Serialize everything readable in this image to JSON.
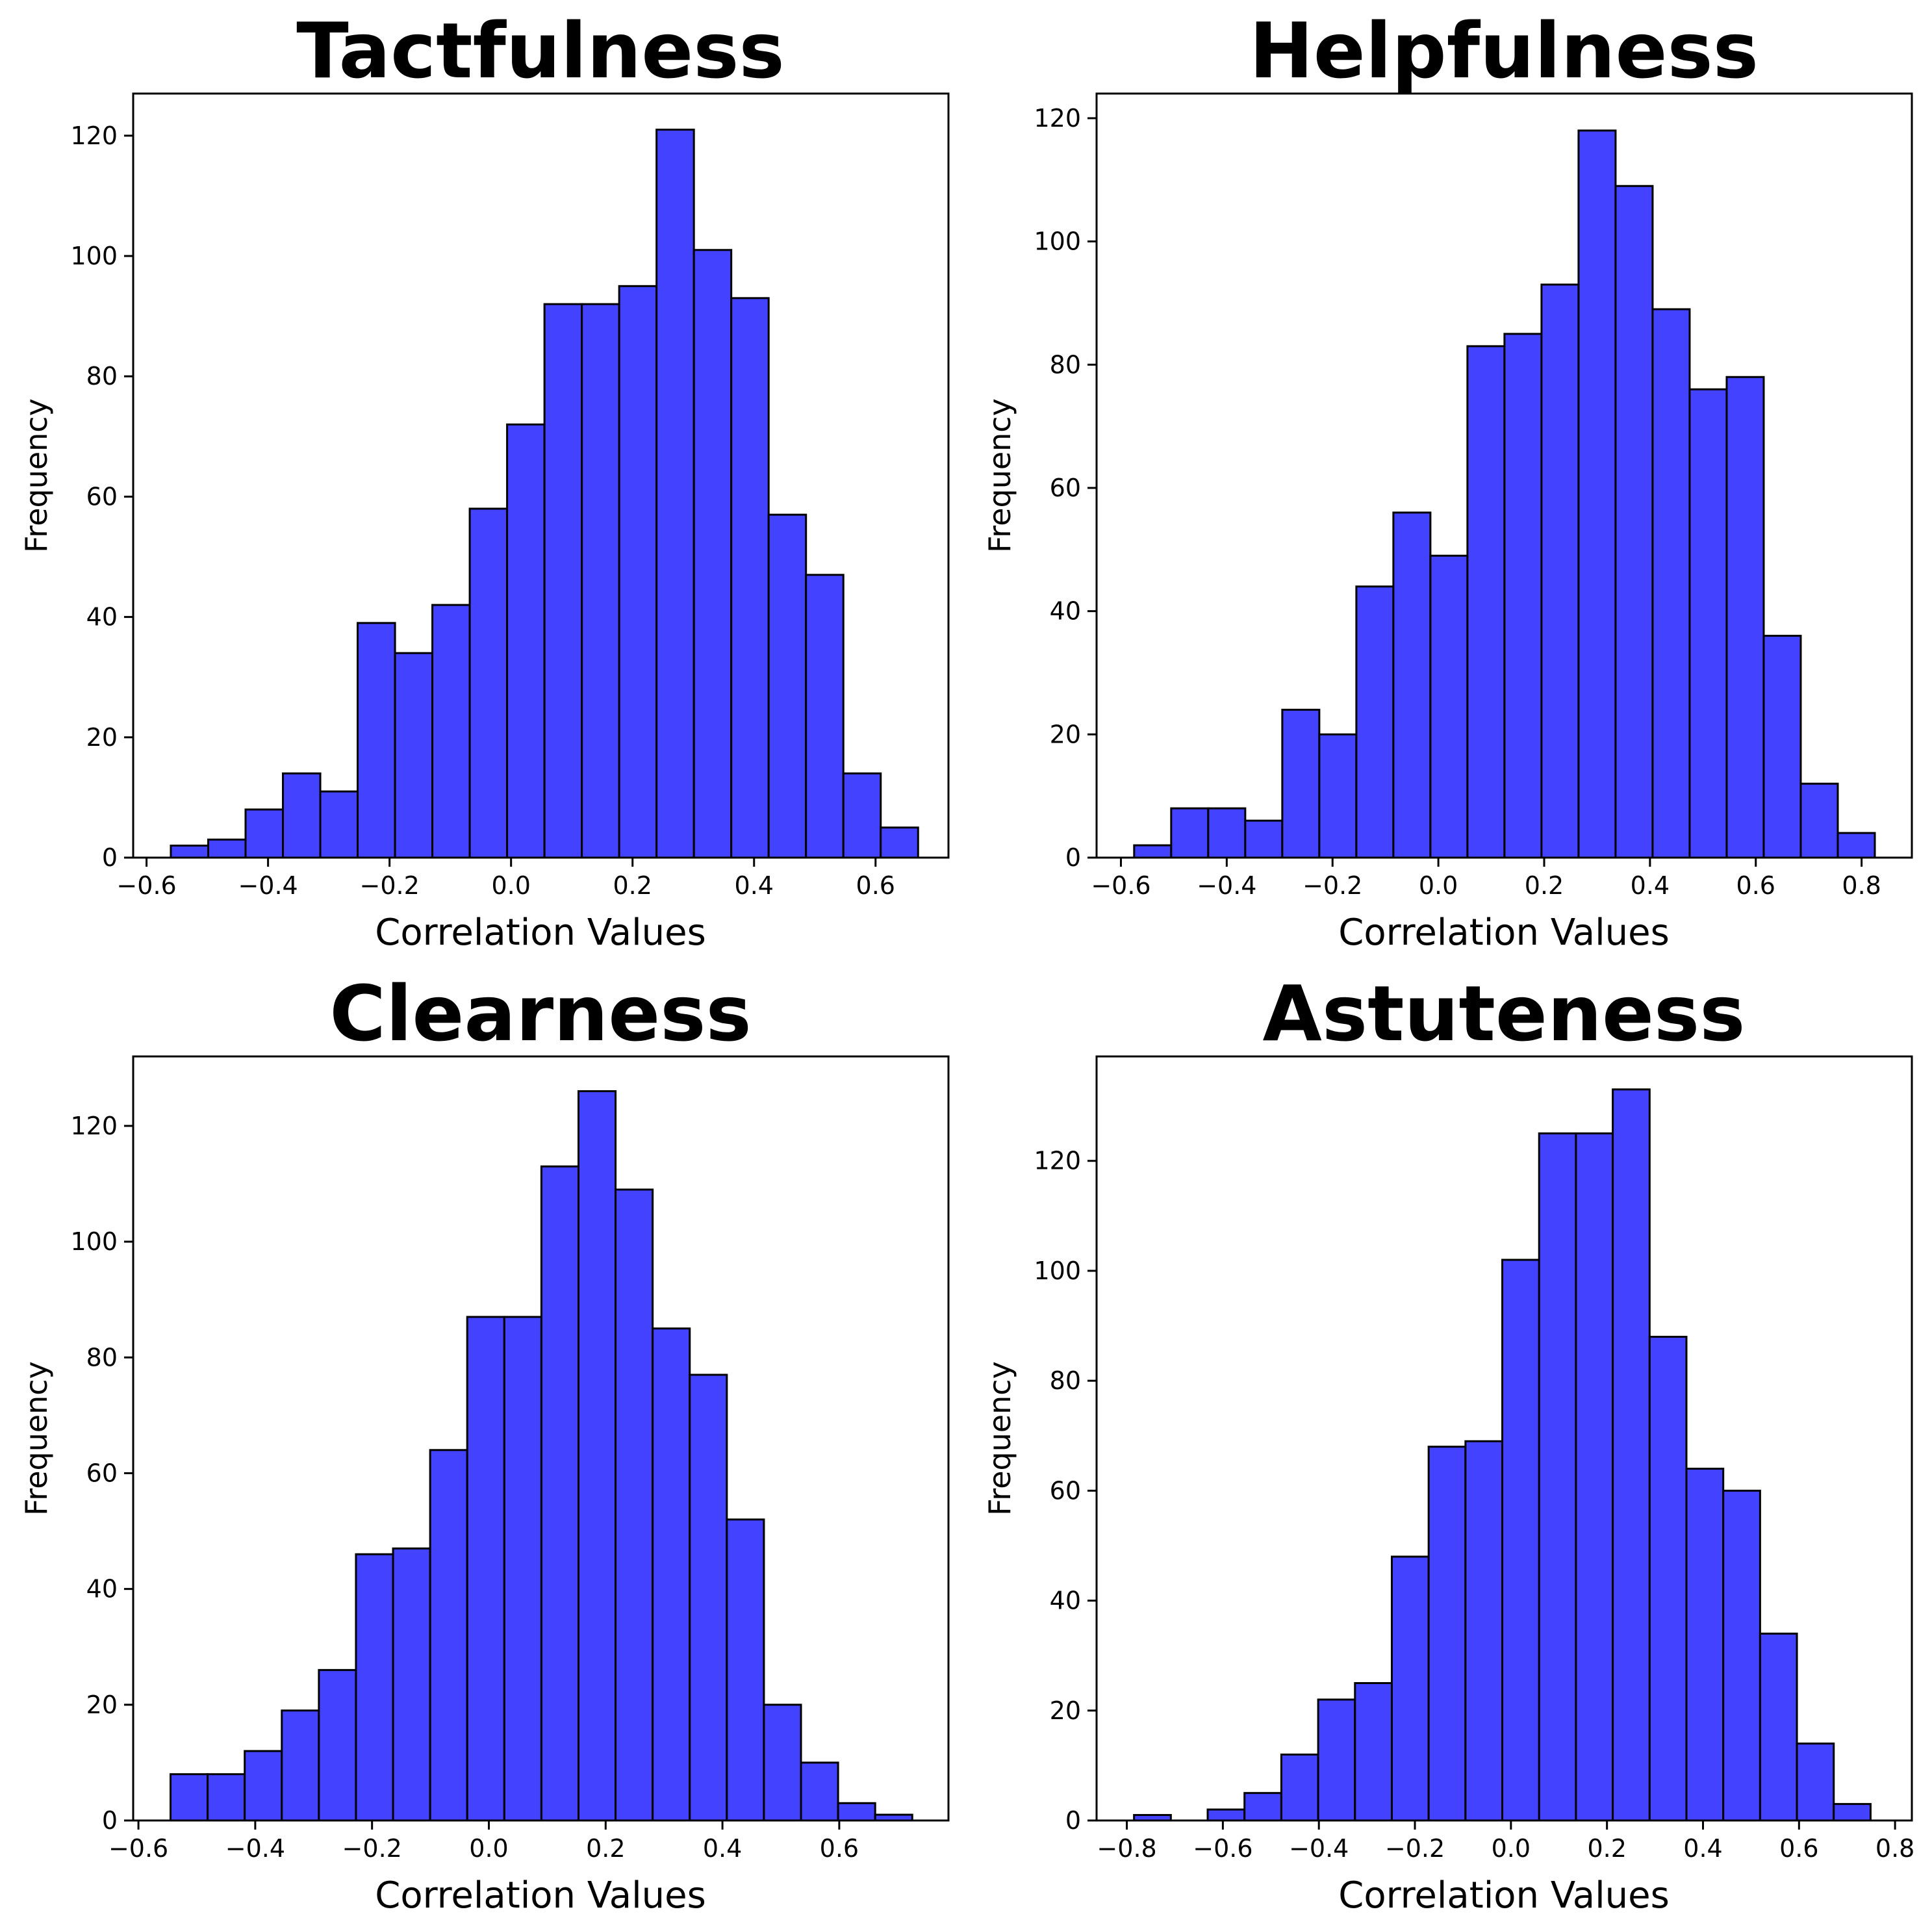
{
  "style": {
    "bar_fill": "#4343ff",
    "bar_edge": "#000000"
  },
  "chart_data": [
    {
      "type": "bar",
      "title": "Tactfulness",
      "xlabel": "Correlation Values",
      "ylabel": "Frequency",
      "bin_start": -0.56,
      "bin_width": 0.0615,
      "values": [
        2,
        3,
        8,
        14,
        11,
        39,
        34,
        42,
        58,
        72,
        92,
        92,
        95,
        121,
        101,
        93,
        57,
        47,
        14,
        5
      ],
      "xlim": [
        -0.622,
        0.72
      ],
      "ylim": [
        0,
        127
      ],
      "xticks": [
        -0.6,
        -0.4,
        -0.2,
        0.0,
        0.2,
        0.4,
        0.6
      ],
      "xtick_labels": [
        "−0.6",
        "−0.4",
        "−0.2",
        "0.0",
        "0.2",
        "0.4",
        "0.6"
      ],
      "yticks": [
        0,
        20,
        40,
        60,
        80,
        100,
        120
      ],
      "ytick_labels": [
        "0",
        "20",
        "40",
        "60",
        "80",
        "100",
        "120"
      ],
      "grid": false
    },
    {
      "type": "bar",
      "title": "Helpfulness",
      "xlabel": "Correlation Values",
      "ylabel": "Frequency",
      "bin_start": -0.575,
      "bin_width": 0.07,
      "values": [
        2,
        8,
        8,
        6,
        24,
        20,
        44,
        56,
        49,
        83,
        85,
        93,
        118,
        109,
        89,
        76,
        78,
        36,
        12,
        4
      ],
      "xlim": [
        -0.646,
        0.895
      ],
      "ylim": [
        0,
        124
      ],
      "xticks": [
        -0.6,
        -0.4,
        -0.2,
        0.0,
        0.2,
        0.4,
        0.6,
        0.8
      ],
      "xtick_labels": [
        "−0.6",
        "−0.4",
        "−0.2",
        "0.0",
        "0.2",
        "0.4",
        "0.6",
        "0.8"
      ],
      "yticks": [
        0,
        20,
        40,
        60,
        80,
        100,
        120
      ],
      "ytick_labels": [
        "0",
        "20",
        "40",
        "60",
        "80",
        "100",
        "120"
      ],
      "grid": false
    },
    {
      "type": "bar",
      "title": "Clearness",
      "xlabel": "Correlation Values",
      "ylabel": "Frequency",
      "bin_start": -0.545,
      "bin_width": 0.0635,
      "values": [
        8,
        8,
        12,
        19,
        26,
        46,
        47,
        64,
        87,
        87,
        113,
        126,
        109,
        85,
        77,
        52,
        20,
        10,
        3,
        1
      ],
      "xlim": [
        -0.609,
        0.787
      ],
      "ylim": [
        0,
        132
      ],
      "xticks": [
        -0.6,
        -0.4,
        -0.2,
        0.0,
        0.2,
        0.4,
        0.6
      ],
      "xtick_labels": [
        "−0.6",
        "−0.4",
        "−0.2",
        "0.0",
        "0.2",
        "0.4",
        "0.6"
      ],
      "yticks": [
        0,
        20,
        40,
        60,
        80,
        100,
        120
      ],
      "ytick_labels": [
        "0",
        "20",
        "40",
        "60",
        "80",
        "100",
        "120"
      ],
      "grid": false
    },
    {
      "type": "bar",
      "title": "Astuteness",
      "xlabel": "Correlation Values",
      "ylabel": "Frequency",
      "bin_start": -0.785,
      "bin_width": 0.0767,
      "values": [
        1,
        0,
        2,
        5,
        12,
        22,
        25,
        48,
        68,
        69,
        102,
        125,
        125,
        133,
        88,
        64,
        60,
        34,
        14,
        3
      ],
      "xlim": [
        -0.863,
        0.835
      ],
      "ylim": [
        0,
        139
      ],
      "xticks": [
        -0.8,
        -0.6,
        -0.4,
        -0.2,
        0.0,
        0.2,
        0.4,
        0.6,
        0.8
      ],
      "xtick_labels": [
        "−0.8",
        "−0.6",
        "−0.4",
        "−0.2",
        "0.0",
        "0.2",
        "0.4",
        "0.6",
        "0.8"
      ],
      "yticks": [
        0,
        20,
        40,
        60,
        80,
        100,
        120
      ],
      "ytick_labels": [
        "0",
        "20",
        "40",
        "60",
        "80",
        "100",
        "120"
      ],
      "grid": false
    }
  ]
}
